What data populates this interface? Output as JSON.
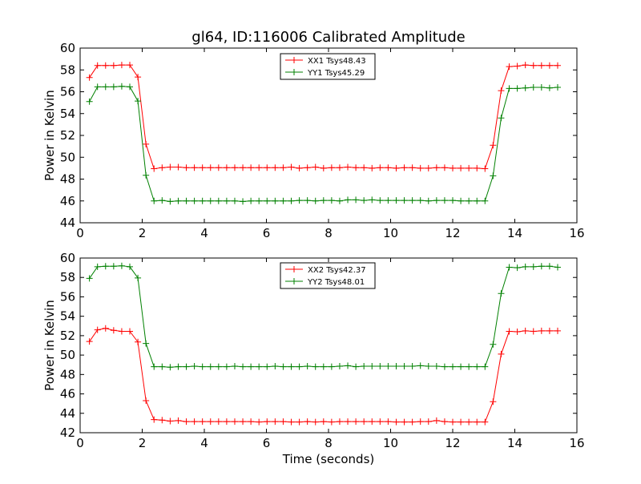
{
  "chart_data": {
    "type": "line",
    "title": "gl64, ID:116006 Calibrated Amplitude",
    "xlabel": "Time (seconds)",
    "xlim": [
      0,
      16
    ],
    "xticks": [
      0,
      2,
      4,
      6,
      8,
      10,
      12,
      14,
      16
    ],
    "x": [
      0.3,
      0.56,
      0.82,
      1.08,
      1.34,
      1.6,
      1.86,
      2.12,
      2.38,
      2.64,
      2.9,
      3.16,
      3.42,
      3.68,
      3.94,
      4.2,
      4.46,
      4.72,
      4.98,
      5.24,
      5.5,
      5.76,
      6.02,
      6.28,
      6.54,
      6.8,
      7.06,
      7.32,
      7.58,
      7.84,
      8.1,
      8.36,
      8.62,
      8.88,
      9.14,
      9.4,
      9.66,
      9.92,
      10.18,
      10.44,
      10.7,
      10.96,
      11.22,
      11.48,
      11.74,
      12.0,
      12.26,
      12.52,
      12.78,
      13.04,
      13.3,
      13.56,
      13.82,
      14.08,
      14.34,
      14.6,
      14.86,
      15.12,
      15.38
    ],
    "panels": [
      {
        "ylabel": "Power in Kelvin",
        "ylim": [
          44,
          60
        ],
        "yticks": [
          44,
          46,
          48,
          50,
          52,
          54,
          56,
          58,
          60
        ],
        "legend_position": "top-center",
        "series": [
          {
            "name": "XX1 Tsys48.43",
            "color": "#ff0000",
            "values": [
              57.3,
              58.4,
              58.4,
              58.4,
              58.45,
              58.45,
              57.35,
              51.2,
              48.95,
              49.05,
              49.1,
              49.1,
              49.05,
              49.05,
              49.05,
              49.05,
              49.05,
              49.05,
              49.05,
              49.05,
              49.05,
              49.05,
              49.05,
              49.05,
              49.05,
              49.1,
              49.0,
              49.05,
              49.1,
              49.0,
              49.05,
              49.05,
              49.1,
              49.05,
              49.05,
              49.0,
              49.05,
              49.05,
              49.0,
              49.05,
              49.05,
              49.0,
              49.0,
              49.05,
              49.05,
              49.0,
              49.0,
              49.0,
              49.0,
              48.95,
              51.1,
              56.1,
              58.3,
              58.35,
              58.45,
              58.4,
              58.4,
              58.4,
              58.4
            ]
          },
          {
            "name": "YY1 Tsys45.29",
            "color": "#008000",
            "values": [
              55.1,
              56.45,
              56.45,
              56.45,
              56.5,
              56.45,
              55.15,
              48.35,
              46.0,
              46.05,
              45.95,
              46.0,
              46.0,
              46.0,
              46.0,
              46.0,
              46.0,
              46.0,
              46.0,
              45.95,
              46.0,
              46.0,
              46.0,
              46.0,
              46.0,
              46.0,
              46.05,
              46.05,
              46.0,
              46.05,
              46.05,
              46.0,
              46.1,
              46.1,
              46.05,
              46.1,
              46.05,
              46.05,
              46.05,
              46.05,
              46.05,
              46.05,
              46.0,
              46.05,
              46.05,
              46.05,
              46.0,
              46.0,
              46.0,
              46.0,
              48.3,
              53.6,
              56.3,
              56.3,
              56.35,
              56.4,
              56.4,
              56.35,
              56.4
            ]
          }
        ]
      },
      {
        "ylabel": "Power in Kelvin",
        "ylim": [
          42,
          60
        ],
        "yticks": [
          42,
          44,
          46,
          48,
          50,
          52,
          54,
          56,
          58,
          60
        ],
        "legend_position": "top-center",
        "series": [
          {
            "name": "XX2 Tsys42.37",
            "color": "#ff0000",
            "values": [
              51.4,
              52.6,
              52.75,
              52.55,
              52.45,
              52.45,
              51.35,
              45.3,
              43.35,
              43.3,
              43.2,
              43.25,
              43.15,
              43.15,
              43.15,
              43.15,
              43.15,
              43.15,
              43.15,
              43.15,
              43.15,
              43.1,
              43.15,
              43.15,
              43.15,
              43.1,
              43.1,
              43.15,
              43.1,
              43.15,
              43.1,
              43.15,
              43.15,
              43.15,
              43.15,
              43.15,
              43.15,
              43.15,
              43.1,
              43.1,
              43.1,
              43.15,
              43.15,
              43.25,
              43.15,
              43.1,
              43.1,
              43.1,
              43.1,
              43.1,
              45.2,
              50.1,
              52.45,
              52.4,
              52.5,
              52.45,
              52.5,
              52.5,
              52.5
            ]
          },
          {
            "name": "YY2 Tsys48.01",
            "color": "#008000",
            "values": [
              57.9,
              59.1,
              59.15,
              59.15,
              59.2,
              59.1,
              57.95,
              51.2,
              48.8,
              48.8,
              48.75,
              48.8,
              48.8,
              48.85,
              48.8,
              48.8,
              48.8,
              48.8,
              48.85,
              48.8,
              48.8,
              48.8,
              48.8,
              48.85,
              48.8,
              48.8,
              48.8,
              48.85,
              48.8,
              48.8,
              48.8,
              48.85,
              48.9,
              48.8,
              48.85,
              48.85,
              48.85,
              48.85,
              48.85,
              48.85,
              48.85,
              48.9,
              48.85,
              48.85,
              48.8,
              48.8,
              48.8,
              48.8,
              48.8,
              48.8,
              51.1,
              56.35,
              59.05,
              59.0,
              59.1,
              59.1,
              59.15,
              59.15,
              59.05
            ]
          }
        ]
      }
    ]
  }
}
